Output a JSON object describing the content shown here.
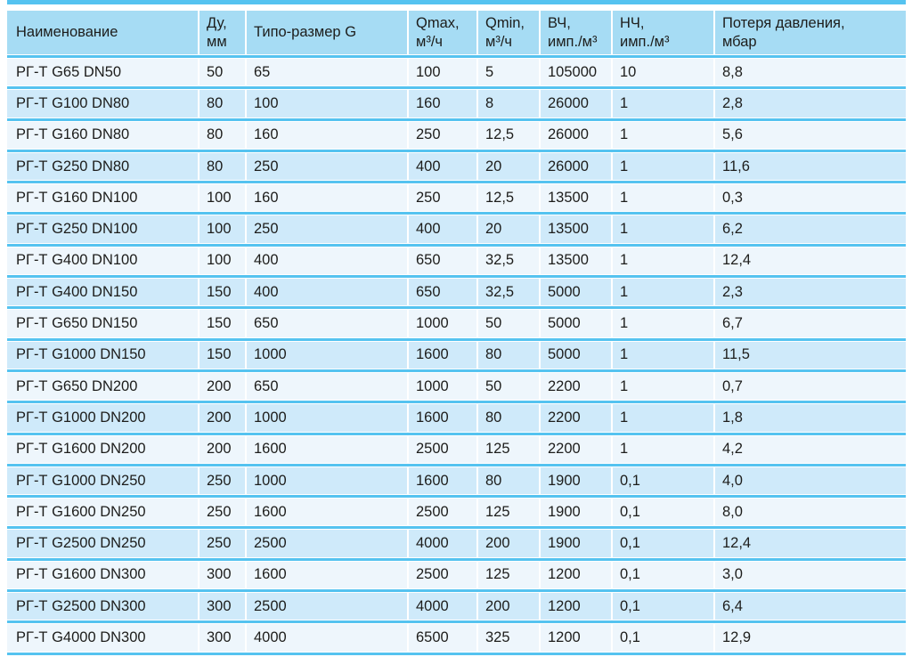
{
  "colors": {
    "header_bg": "#a6dcf4",
    "row_light": "#eef6fc",
    "row_blue": "#cfeafa",
    "line_blue": "#55c3f0",
    "text": "#1d1d1b"
  },
  "table": {
    "columns": [
      {
        "id": "name",
        "line1": "Наименование",
        "line2": ""
      },
      {
        "id": "du",
        "line1": "Ду,",
        "line2": "мм"
      },
      {
        "id": "g",
        "line1": "Типо-размер G",
        "line2": ""
      },
      {
        "id": "qmax",
        "line1": "Qmax,",
        "line2": "м³/ч"
      },
      {
        "id": "qmin",
        "line1": "Qmin,",
        "line2": "м³/ч"
      },
      {
        "id": "hf",
        "line1": "ВЧ,",
        "line2": "имп./м³"
      },
      {
        "id": "lf",
        "line1": "НЧ,",
        "line2": "имп./м³"
      },
      {
        "id": "dp",
        "line1": "Потеря давления,",
        "line2": "мбар"
      }
    ],
    "rows": [
      [
        "РГ-Т G65 DN50",
        "50",
        "65",
        "100",
        "5",
        "105000",
        "10",
        "8,8"
      ],
      [
        "РГ-Т G100 DN80",
        "80",
        "100",
        "160",
        "8",
        "26000",
        "1",
        "2,8"
      ],
      [
        "РГ-Т G160 DN80",
        "80",
        "160",
        "250",
        "12,5",
        "26000",
        "1",
        "5,6"
      ],
      [
        "РГ-Т G250 DN80",
        "80",
        "250",
        "400",
        "20",
        "26000",
        "1",
        "11,6"
      ],
      [
        "РГ-Т G160 DN100",
        "100",
        "160",
        "250",
        "12,5",
        "13500",
        "1",
        "0,3"
      ],
      [
        "РГ-Т G250 DN100",
        "100",
        "250",
        "400",
        "20",
        "13500",
        "1",
        "6,2"
      ],
      [
        "РГ-Т G400 DN100",
        "100",
        "400",
        "650",
        "32,5",
        "13500",
        "1",
        "12,4"
      ],
      [
        "РГ-Т G400 DN150",
        "150",
        "400",
        "650",
        "32,5",
        "5000",
        "1",
        "2,3"
      ],
      [
        "РГ-Т G650 DN150",
        "150",
        "650",
        "1000",
        "50",
        "5000",
        "1",
        "6,7"
      ],
      [
        "РГ-Т G1000 DN150",
        "150",
        "1000",
        "1600",
        "80",
        "5000",
        "1",
        "11,5"
      ],
      [
        "РГ-Т G650 DN200",
        "200",
        "650",
        "1000",
        "50",
        "2200",
        "1",
        "0,7"
      ],
      [
        "РГ-Т G1000 DN200",
        "200",
        "1000",
        "1600",
        "80",
        "2200",
        "1",
        "1,8"
      ],
      [
        "РГ-Т G1600 DN200",
        "200",
        "1600",
        "2500",
        "125",
        "2200",
        "1",
        "4,2"
      ],
      [
        "РГ-Т G1000 DN250",
        "250",
        "1000",
        "1600",
        "80",
        "1900",
        "0,1",
        "4,0"
      ],
      [
        "РГ-Т G1600 DN250",
        "250",
        "1600",
        "2500",
        "125",
        "1900",
        "0,1",
        "8,0"
      ],
      [
        "РГ-Т G2500 DN250",
        "250",
        "2500",
        "4000",
        "200",
        "1900",
        "0,1",
        "12,4"
      ],
      [
        "РГ-Т G1600 DN300",
        "300",
        "1600",
        "2500",
        "125",
        "1200",
        "0,1",
        "3,0"
      ],
      [
        "РГ-Т G2500 DN300",
        "300",
        "2500",
        "4000",
        "200",
        "1200",
        "0,1",
        "6,4"
      ],
      [
        "РГ-Т G4000 DN300",
        "300",
        "4000",
        "6500",
        "325",
        "1200",
        "0,1",
        "12,9"
      ]
    ]
  }
}
